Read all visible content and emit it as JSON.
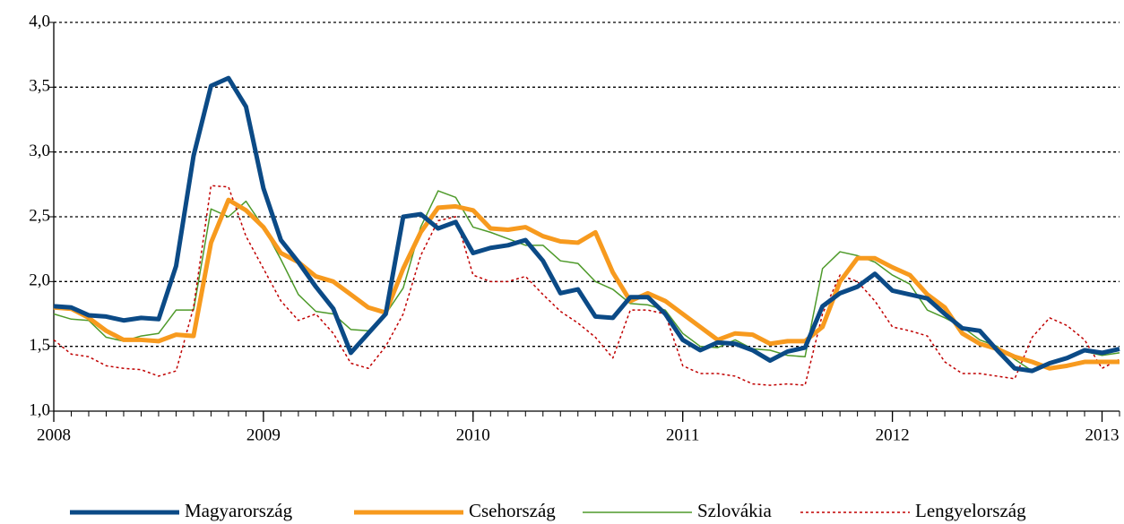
{
  "chart_data": {
    "type": "line",
    "x": [
      0,
      1,
      2,
      3,
      4,
      5,
      6,
      7,
      8,
      9,
      10,
      11,
      12,
      13,
      14,
      15,
      16,
      17,
      18,
      19,
      20,
      21,
      22,
      23,
      24,
      25,
      26,
      27,
      28,
      29,
      30,
      31,
      32,
      33,
      34,
      35,
      36,
      37,
      38,
      39,
      40,
      41,
      42,
      43,
      44,
      45,
      46,
      47,
      48,
      49,
      50,
      51,
      52,
      53,
      54,
      55,
      56,
      57,
      58,
      59,
      60,
      61
    ],
    "xlim": [
      0,
      61
    ],
    "xticks": [
      {
        "value": 0,
        "label": "2008"
      },
      {
        "value": 12,
        "label": "2009"
      },
      {
        "value": 24,
        "label": "2010"
      },
      {
        "value": 36,
        "label": "2011"
      },
      {
        "value": 48,
        "label": "2012"
      },
      {
        "value": 60,
        "label": "2013"
      }
    ],
    "ylim": [
      1,
      4
    ],
    "yticks": [
      {
        "value": 1,
        "label": "1,0"
      },
      {
        "value": 1.5,
        "label": "1,5"
      },
      {
        "value": 2,
        "label": "2,0"
      },
      {
        "value": 2.5,
        "label": "2,5"
      },
      {
        "value": 3,
        "label": "3,0"
      },
      {
        "value": 3.5,
        "label": "3,5"
      },
      {
        "value": 4,
        "label": "4,0"
      }
    ],
    "grid": true,
    "legend": "bottom",
    "series": [
      {
        "name": "Magyarország",
        "color": "#0b4a86",
        "width": 5,
        "dash": "solid",
        "values": [
          1.81,
          1.8,
          1.74,
          1.73,
          1.7,
          1.72,
          1.71,
          2.12,
          2.97,
          3.51,
          3.57,
          3.35,
          2.72,
          2.32,
          2.15,
          1.96,
          1.79,
          1.45,
          1.6,
          1.75,
          2.5,
          2.52,
          2.41,
          2.46,
          2.22,
          2.26,
          2.28,
          2.32,
          2.16,
          1.91,
          1.94,
          1.73,
          1.72,
          1.88,
          1.88,
          1.75,
          1.55,
          1.47,
          1.53,
          1.52,
          1.47,
          1.39,
          1.46,
          1.49,
          1.81,
          1.91,
          1.96,
          2.06,
          1.93,
          1.9,
          1.87,
          1.75,
          1.64,
          1.62,
          1.47,
          1.33,
          1.31,
          1.37,
          1.41,
          1.47,
          1.45,
          1.48
        ]
      },
      {
        "name": "Csehország",
        "color": "#f79a1e",
        "width": 5,
        "dash": "solid",
        "values": [
          1.8,
          1.79,
          1.72,
          1.62,
          1.55,
          1.55,
          1.54,
          1.59,
          1.58,
          2.3,
          2.63,
          2.55,
          2.42,
          2.22,
          2.15,
          2.04,
          2.0,
          1.9,
          1.8,
          1.76,
          2.1,
          2.38,
          2.57,
          2.58,
          2.55,
          2.41,
          2.4,
          2.42,
          2.35,
          2.31,
          2.3,
          2.38,
          2.07,
          1.85,
          1.91,
          1.85,
          1.75,
          1.65,
          1.55,
          1.6,
          1.59,
          1.52,
          1.54,
          1.54,
          1.65,
          2.0,
          2.18,
          2.18,
          2.11,
          2.05,
          1.9,
          1.8,
          1.6,
          1.52,
          1.48,
          1.42,
          1.38,
          1.33,
          1.35,
          1.38,
          1.38,
          1.38
        ]
      },
      {
        "name": "Szlovákia",
        "color": "#4e9a2a",
        "width": 1.5,
        "dash": "solid",
        "values": [
          1.75,
          1.71,
          1.7,
          1.57,
          1.54,
          1.58,
          1.6,
          1.78,
          1.78,
          2.56,
          2.5,
          2.62,
          2.42,
          2.17,
          1.9,
          1.77,
          1.75,
          1.63,
          1.62,
          1.75,
          1.95,
          2.42,
          2.7,
          2.65,
          2.42,
          2.38,
          2.33,
          2.28,
          2.28,
          2.16,
          2.14,
          2.0,
          1.94,
          1.83,
          1.82,
          1.78,
          1.6,
          1.5,
          1.49,
          1.55,
          1.48,
          1.47,
          1.43,
          1.42,
          2.1,
          2.23,
          2.2,
          2.15,
          2.05,
          1.98,
          1.78,
          1.72,
          1.65,
          1.55,
          1.5,
          1.4,
          1.31,
          1.38,
          1.42,
          1.46,
          1.43,
          1.45
        ]
      },
      {
        "name": "Lengyelország",
        "color": "#c00000",
        "width": 1.5,
        "dash": "dotted",
        "values": [
          1.55,
          1.44,
          1.42,
          1.35,
          1.33,
          1.32,
          1.27,
          1.31,
          1.8,
          2.74,
          2.73,
          2.35,
          2.1,
          1.85,
          1.7,
          1.75,
          1.6,
          1.37,
          1.33,
          1.5,
          1.75,
          2.2,
          2.47,
          2.5,
          2.05,
          2.0,
          2.0,
          2.04,
          1.9,
          1.77,
          1.68,
          1.57,
          1.41,
          1.78,
          1.78,
          1.75,
          1.35,
          1.29,
          1.29,
          1.27,
          1.21,
          1.2,
          1.21,
          1.2,
          1.75,
          2.05,
          2.0,
          1.85,
          1.65,
          1.62,
          1.58,
          1.38,
          1.29,
          1.29,
          1.27,
          1.25,
          1.57,
          1.72,
          1.66,
          1.55,
          1.33,
          1.4
        ]
      }
    ]
  }
}
